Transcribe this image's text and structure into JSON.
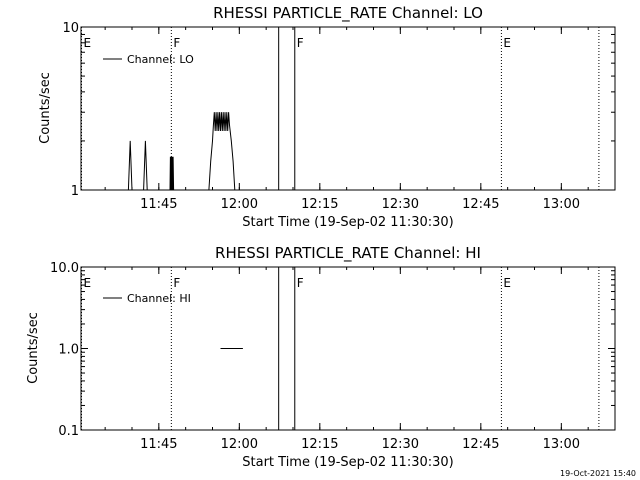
{
  "chart_data": [
    {
      "type": "line",
      "title": "RHESSI PARTICLE_RATE Channel: LO",
      "xlabel": "Start Time (19-Sep-02 11:30:30)",
      "ylabel": "Counts/sec",
      "yscale": "log",
      "xlim": [
        "11:30:30",
        "13:10:00"
      ],
      "ylim": [
        1,
        10
      ],
      "x_ticks": [
        "11:45",
        "12:00",
        "12:15",
        "12:30",
        "12:45",
        "13:00"
      ],
      "y_ticks": [
        "1",
        "10"
      ],
      "legend": {
        "entry": "Channel: LO",
        "placement": "top-left"
      },
      "series": [
        {
          "name": "Channel: LO",
          "segments": [
            {
              "x": [
                "11:39:20",
                "11:39:40",
                "11:40:00"
              ],
              "y": [
                1,
                2,
                1
              ]
            },
            {
              "x": [
                "11:42:10",
                "11:42:30",
                "11:42:50"
              ],
              "y": [
                1,
                2,
                1
              ]
            },
            {
              "x": [
                "11:47:05",
                "11:47:10",
                "11:47:15",
                "11:47:20",
                "11:47:25",
                "11:47:30",
                "11:47:35",
                "11:47:40",
                "11:47:45"
              ],
              "y": [
                1,
                1.6,
                1,
                1.6,
                1,
                1.6,
                1,
                1.6,
                1
              ]
            },
            {
              "x": [
                "11:54:20",
                "11:54:40",
                "11:55:00",
                "11:55:10",
                "11:55:20",
                "11:55:30",
                "11:55:40",
                "11:55:50",
                "11:56:00",
                "11:56:10",
                "11:56:20",
                "11:56:30",
                "11:56:40",
                "11:56:50",
                "11:57:00",
                "11:57:10",
                "11:57:20",
                "11:57:30",
                "11:57:40",
                "11:57:50",
                "11:58:00",
                "11:58:10",
                "11:58:30",
                "11:58:50",
                "11:59:10"
              ],
              "y": [
                1,
                1.5,
                2,
                2.5,
                3,
                2.3,
                3,
                2.3,
                3,
                2.3,
                3,
                2.3,
                3,
                2.3,
                3,
                2.3,
                3,
                2.3,
                3,
                2.3,
                3,
                2.5,
                2,
                1.5,
                1
              ]
            }
          ]
        }
      ],
      "markers": [
        {
          "label": "E",
          "x": "11:30:30",
          "style": "dotted"
        },
        {
          "label": "F",
          "x": "11:47:20",
          "style": "dotted"
        },
        {
          "label": "",
          "x": "12:07:20",
          "style": "solid"
        },
        {
          "label": "F",
          "x": "12:10:20",
          "style": "solid"
        },
        {
          "label": "E",
          "x": "12:48:50",
          "style": "dotted"
        },
        {
          "label": "",
          "x": "13:07:00",
          "style": "dotted"
        }
      ]
    },
    {
      "type": "line",
      "title": "RHESSI PARTICLE_RATE Channel: HI",
      "xlabel": "Start Time (19-Sep-02 11:30:30)",
      "ylabel": "Counts/sec",
      "yscale": "log",
      "xlim": [
        "11:30:30",
        "13:10:00"
      ],
      "ylim": [
        0.1,
        10
      ],
      "x_ticks": [
        "11:45",
        "12:00",
        "12:15",
        "12:30",
        "12:45",
        "13:00"
      ],
      "y_ticks": [
        "0.1",
        "1.0",
        "10.0"
      ],
      "legend": {
        "entry": "Channel: HI",
        "placement": "top-left"
      },
      "series": [
        {
          "name": "Channel: HI",
          "segments": [
            {
              "x": [
                "11:56:30",
                "12:00:40"
              ],
              "y": [
                1,
                1
              ]
            },
            {
              "x": [
                "13:09:00",
                "13:10:00"
              ],
              "y": [
                1,
                1
              ]
            }
          ]
        }
      ],
      "markers": [
        {
          "label": "E",
          "x": "11:30:30",
          "style": "dotted"
        },
        {
          "label": "F",
          "x": "11:47:20",
          "style": "dotted"
        },
        {
          "label": "",
          "x": "12:07:20",
          "style": "solid"
        },
        {
          "label": "F",
          "x": "12:10:20",
          "style": "solid"
        },
        {
          "label": "E",
          "x": "12:48:50",
          "style": "dotted"
        },
        {
          "label": "",
          "x": "13:07:00",
          "style": "dotted"
        }
      ]
    }
  ],
  "footer": {
    "timestamp": "19-Oct-2021 15:40"
  }
}
